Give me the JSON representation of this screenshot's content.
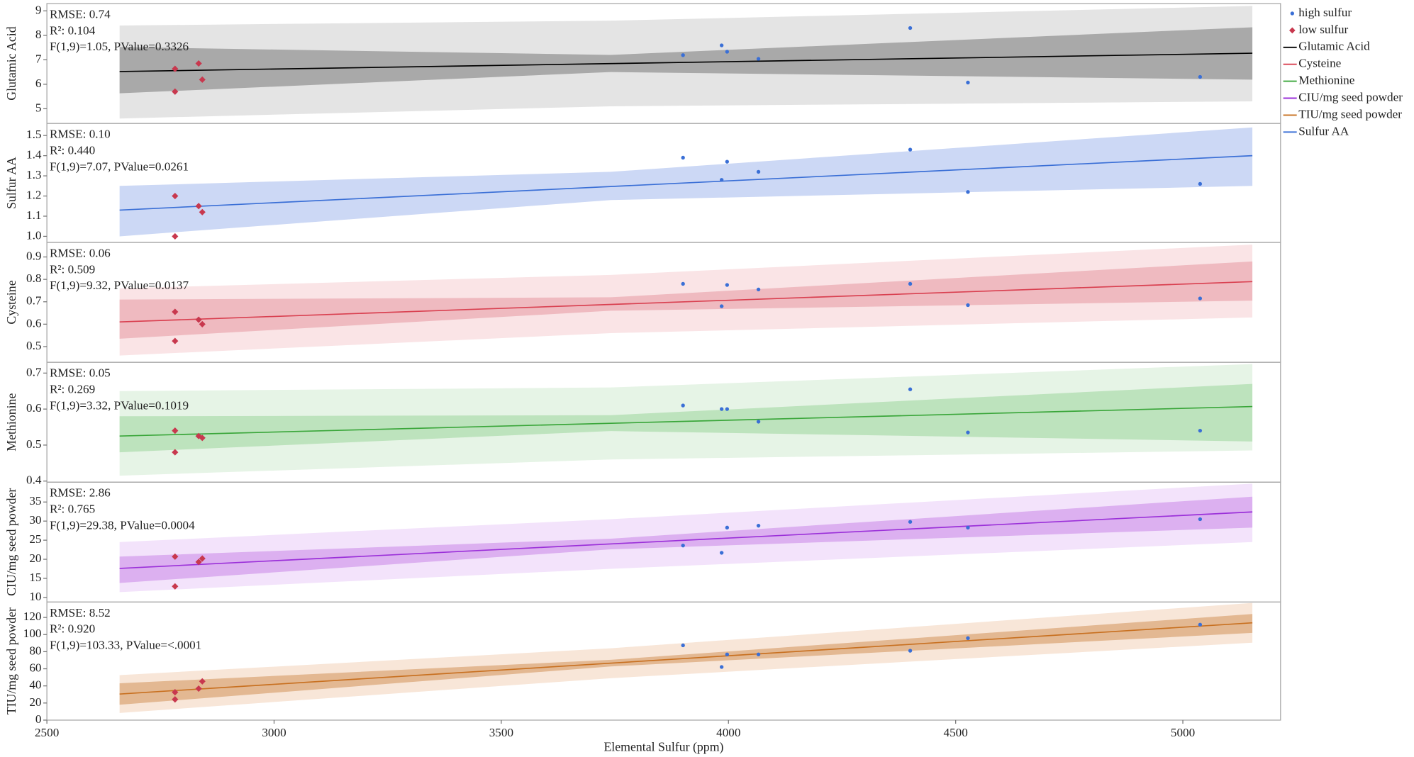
{
  "chart_data": [
    {
      "type": "scatter",
      "y_label": "Glutamic Acid",
      "annotations": [
        "RMSE: 0.74",
        "R²: 0.104",
        "F(1,9)=1.05, PValue=0.3326"
      ],
      "xlim": [
        2500,
        5215
      ],
      "ylim": [
        4.4,
        9.3
      ],
      "yticks": [
        5,
        6,
        7,
        8,
        9
      ],
      "series": [
        {
          "name": "high sulfur",
          "color": "#3a6fd6",
          "marker": "circle",
          "x": [
            3900,
            3985,
            3997,
            4066,
            4400,
            4527,
            5038
          ],
          "values": [
            7.19,
            7.59,
            7.33,
            7.04,
            8.3,
            6.07,
            6.3
          ]
        },
        {
          "name": "low sulfur",
          "color": "#c8384e",
          "marker": "diamond",
          "x": [
            2782,
            2782,
            2834,
            2842
          ],
          "values": [
            6.63,
            5.7,
            6.85,
            6.19
          ]
        },
        {
          "name": "Glutamic Acid",
          "color": "#000000",
          "marker": "line",
          "x": [
            2660,
            5153
          ],
          "values": [
            6.52,
            7.27
          ]
        }
      ],
      "pi_band": {
        "color": "#e4e4e4",
        "x": [
          2660,
          3741,
          5153
        ],
        "upper": [
          8.4,
          8.6,
          9.2
        ],
        "lower": [
          4.6,
          5.1,
          5.3
        ]
      },
      "ci_band": {
        "color": "#a9a9a9",
        "x": [
          2660,
          3741,
          5153
        ],
        "upper": [
          7.52,
          7.2,
          8.33
        ],
        "lower": [
          5.63,
          6.5,
          6.19
        ]
      }
    },
    {
      "type": "scatter",
      "y_label": "Sulfur AA",
      "annotations": [
        "RMSE: 0.10",
        "R²: 0.440",
        "F(1,9)=7.07, PValue=0.0261"
      ],
      "xlim": [
        2500,
        5215
      ],
      "ylim": [
        0.97,
        1.56
      ],
      "yticks": [
        {
          "value": 1,
          "label": "1.0"
        },
        1.1,
        1.2,
        1.3,
        1.4,
        1.5
      ],
      "series": [
        {
          "name": "high sulfur",
          "color": "#3a6fd6",
          "marker": "circle",
          "x": [
            3900,
            3985,
            3997,
            4066,
            4400,
            4527,
            5038
          ],
          "values": [
            1.39,
            1.28,
            1.37,
            1.32,
            1.43,
            1.22,
            1.26
          ]
        },
        {
          "name": "low sulfur",
          "color": "#c8384e",
          "marker": "diamond",
          "x": [
            2782,
            2782,
            2834,
            2842
          ],
          "values": [
            1.2,
            1.0,
            1.15,
            1.12
          ]
        },
        {
          "name": "Sulfur AA",
          "color": "#3a6fd6",
          "marker": "line",
          "x": [
            2660,
            5153
          ],
          "values": [
            1.13,
            1.4
          ]
        }
      ],
      "ci_band": {
        "color": "#ccd8f5",
        "x": [
          2660,
          3741,
          5153
        ],
        "upper": [
          1.25,
          1.32,
          1.54
        ],
        "lower": [
          1.0,
          1.18,
          1.25
        ]
      }
    },
    {
      "type": "scatter",
      "y_label": "Cysteine",
      "annotations": [
        "RMSE: 0.06",
        "R²: 0.509",
        "F(1,9)=9.32, PValue=0.0137"
      ],
      "xlim": [
        2500,
        5215
      ],
      "ylim": [
        0.43,
        0.965
      ],
      "yticks": [
        0.5,
        0.6,
        0.7,
        0.8,
        0.9
      ],
      "series": [
        {
          "name": "high sulfur",
          "color": "#3a6fd6",
          "marker": "circle",
          "x": [
            3900,
            3985,
            3997,
            4066,
            4400,
            4527,
            5038
          ],
          "values": [
            0.78,
            0.68,
            0.775,
            0.755,
            0.78,
            0.685,
            0.715
          ]
        },
        {
          "name": "low sulfur",
          "color": "#c8384e",
          "marker": "diamond",
          "x": [
            2782,
            2782,
            2834,
            2842
          ],
          "values": [
            0.655,
            0.525,
            0.62,
            0.6
          ]
        },
        {
          "name": "Cysteine",
          "color": "#d94050",
          "marker": "line",
          "x": [
            2660,
            5153
          ],
          "values": [
            0.61,
            0.79
          ]
        }
      ],
      "pi_band": {
        "color": "#fae4e6",
        "x": [
          2660,
          3741,
          5153
        ],
        "upper": [
          0.76,
          0.82,
          0.955
        ],
        "lower": [
          0.46,
          0.56,
          0.63
        ]
      },
      "ci_band": {
        "color": "#efbac0",
        "x": [
          2660,
          3741,
          5153
        ],
        "upper": [
          0.71,
          0.72,
          0.88
        ],
        "lower": [
          0.535,
          0.66,
          0.705
        ]
      }
    },
    {
      "type": "scatter",
      "y_label": "Methionine",
      "annotations": [
        "RMSE: 0.05",
        "R²: 0.269",
        "F(1,9)=3.32, PValue=0.1019"
      ],
      "xlim": [
        2500,
        5215
      ],
      "ylim": [
        0.397,
        0.73
      ],
      "yticks": [
        0.4,
        0.5,
        0.6,
        0.7
      ],
      "series": [
        {
          "name": "high sulfur",
          "color": "#3a6fd6",
          "marker": "circle",
          "x": [
            3900,
            3985,
            3997,
            4066,
            4400,
            4527,
            5038
          ],
          "values": [
            0.61,
            0.6,
            0.6,
            0.565,
            0.655,
            0.535,
            0.54
          ]
        },
        {
          "name": "low sulfur",
          "color": "#c8384e",
          "marker": "diamond",
          "x": [
            2782,
            2782,
            2834,
            2842
          ],
          "values": [
            0.54,
            0.48,
            0.525,
            0.52
          ]
        },
        {
          "name": "Methionine",
          "color": "#3aa63a",
          "marker": "line",
          "x": [
            2660,
            5153
          ],
          "values": [
            0.525,
            0.607
          ]
        }
      ],
      "pi_band": {
        "color": "#e6f4e6",
        "x": [
          2660,
          3741,
          5153
        ],
        "upper": [
          0.65,
          0.66,
          0.725
        ],
        "lower": [
          0.415,
          0.46,
          0.485
        ]
      },
      "ci_band": {
        "color": "#bde3bd",
        "x": [
          2660,
          3741,
          5153
        ],
        "upper": [
          0.58,
          0.583,
          0.67
        ],
        "lower": [
          0.48,
          0.539,
          0.51
        ]
      }
    },
    {
      "type": "scatter",
      "y_label": "CIU/mg seed powder",
      "annotations": [
        "RMSE: 2.86",
        "R²: 0.765",
        "F(1,9)=29.38, PValue=0.0004"
      ],
      "xlim": [
        2500,
        5215
      ],
      "ylim": [
        8.8,
        40.2
      ],
      "yticks": [
        10,
        15,
        20,
        25,
        30,
        35
      ],
      "series": [
        {
          "name": "high sulfur",
          "color": "#3a6fd6",
          "marker": "circle",
          "x": [
            3900,
            3985,
            3997,
            4066,
            4400,
            4527,
            5038
          ],
          "values": [
            23.6,
            21.7,
            28.3,
            28.8,
            29.8,
            28.3,
            30.5
          ]
        },
        {
          "name": "low sulfur",
          "color": "#c8384e",
          "marker": "diamond",
          "x": [
            2782,
            2782,
            2834,
            2842
          ],
          "values": [
            20.7,
            12.9,
            19.3,
            20.2
          ]
        },
        {
          "name": "CIU/mg seed powder",
          "color": "#9b30d9",
          "marker": "line",
          "x": [
            2660,
            5153
          ],
          "values": [
            17.6,
            32.4
          ]
        }
      ],
      "pi_band": {
        "color": "#f3e3fb",
        "x": [
          2660,
          3741,
          5153
        ],
        "upper": [
          24.5,
          30.5,
          39.8
        ],
        "lower": [
          11.4,
          17.5,
          24.5
        ]
      },
      "ci_band": {
        "color": "#dcb0f0",
        "x": [
          2660,
          3741,
          5153
        ],
        "upper": [
          20.7,
          25.4,
          36.4
        ],
        "lower": [
          13.8,
          22.6,
          28.3
        ]
      }
    },
    {
      "type": "scatter",
      "y_label": "TIU/mg seed powder",
      "annotations": [
        "RMSE: 8.52",
        "R²: 0.920",
        "F(1,9)=103.33, PValue=<.0001"
      ],
      "x_label": "Elemental Sulfur (ppm)",
      "xlim": [
        2500,
        5215
      ],
      "xticks": [
        2500,
        3000,
        3500,
        4000,
        4500,
        5000
      ],
      "ylim": [
        0,
        138
      ],
      "yticks": [
        0,
        20,
        40,
        60,
        80,
        100,
        120
      ],
      "series": [
        {
          "name": "high sulfur",
          "color": "#3a6fd6",
          "marker": "circle",
          "x": [
            3900,
            3985,
            3997,
            4066,
            4400,
            4527,
            5038
          ],
          "values": [
            87.4,
            62.1,
            76.8,
            76.8,
            81.1,
            95.8,
            111.6
          ]
        },
        {
          "name": "low sulfur",
          "color": "#c8384e",
          "marker": "diamond",
          "x": [
            2782,
            2782,
            2834,
            2842
          ],
          "values": [
            24.2,
            32.6,
            36.8,
            45.3
          ]
        },
        {
          "name": "TIU/mg seed powder",
          "color": "#c87020",
          "marker": "line",
          "x": [
            2660,
            5153
          ],
          "values": [
            30.5,
            113.7
          ]
        }
      ],
      "pi_band": {
        "color": "#f8e6d8",
        "x": [
          2660,
          3741,
          5153
        ],
        "upper": [
          52.6,
          84,
          137
        ],
        "lower": [
          8.4,
          49,
          90.5
        ]
      },
      "ci_band": {
        "color": "#e3b892",
        "x": [
          2660,
          3741,
          5153
        ],
        "upper": [
          43,
          70.5,
          124
        ],
        "lower": [
          18,
          62.7,
          102
        ]
      }
    }
  ]
}
